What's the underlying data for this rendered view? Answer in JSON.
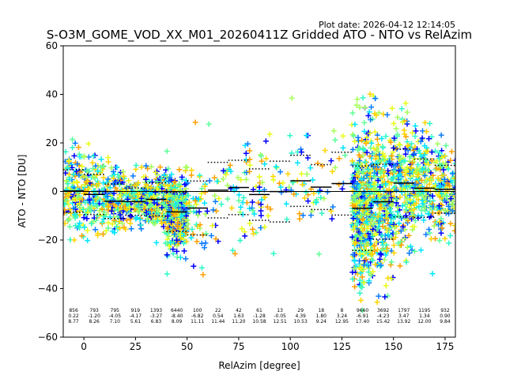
{
  "chart_data": {
    "type": "scatter",
    "title": "S-O3M_GOME_VOD_XX_M01_20260411Z Gridded ATO - NTO vs RelAzim",
    "plot_date": "Plot date: 2026-04-12 12:14:05",
    "xlabel": "RelAzim [degree]",
    "ylabel": "ATO - NTO [DU]",
    "xlim": [
      -10,
      180
    ],
    "ylim": [
      -60,
      60
    ],
    "xticks": [
      0,
      25,
      50,
      75,
      100,
      125,
      150,
      175
    ],
    "yticks": [
      -60,
      -40,
      -20,
      0,
      20,
      40,
      60
    ],
    "grid": false,
    "zero_line": 0,
    "colors": [
      "#0000ff",
      "#0b7bff",
      "#00e5ff",
      "#2ff7c8",
      "#5dff9a",
      "#a6ff5a",
      "#e8ff1a",
      "#ffd400",
      "#ffa000"
    ],
    "bins": [
      {
        "x0": -10,
        "x1": 0,
        "count": "856",
        "mean": "0.22",
        "std": "8.77"
      },
      {
        "x0": 0,
        "x1": 10,
        "count": "793",
        "mean": "-1.20",
        "std": "8.26"
      },
      {
        "x0": 10,
        "x1": 20,
        "count": "795",
        "mean": "-4.05",
        "std": "7.10"
      },
      {
        "x0": 20,
        "x1": 30,
        "count": "919",
        "mean": "-4.17",
        "std": "5.61"
      },
      {
        "x0": 30,
        "x1": 40,
        "count": "1393",
        "mean": "-3.27",
        "std": "6.83"
      },
      {
        "x0": 40,
        "x1": 50,
        "count": "6440",
        "mean": "-8.40",
        "std": "8.09"
      },
      {
        "x0": 50,
        "x1": 60,
        "count": "100",
        "mean": "-6.82",
        "std": "11.11"
      },
      {
        "x0": 60,
        "x1": 70,
        "count": "22",
        "mean": "0.54",
        "std": "11.44"
      },
      {
        "x0": 70,
        "x1": 80,
        "count": "42",
        "mean": "1.63",
        "std": "11.20"
      },
      {
        "x0": 80,
        "x1": 90,
        "count": "61",
        "mean": "-1.28",
        "std": "10.58"
      },
      {
        "x0": 90,
        "x1": 100,
        "count": "13",
        "mean": "-0.05",
        "std": "12.51"
      },
      {
        "x0": 100,
        "x1": 110,
        "count": "29",
        "mean": "4.39",
        "std": "10.53"
      },
      {
        "x0": 110,
        "x1": 120,
        "count": "18",
        "mean": "1.80",
        "std": "9.24"
      },
      {
        "x0": 120,
        "x1": 130,
        "count": "8",
        "mean": "3.24",
        "std": "12.95"
      },
      {
        "x0": 130,
        "x1": 140,
        "count": "9660",
        "mean": "-6.91",
        "std": "17.40"
      },
      {
        "x0": 140,
        "x1": 150,
        "count": "3692",
        "mean": "-4.23",
        "std": "15.42"
      },
      {
        "x0": 150,
        "x1": 160,
        "count": "1797",
        "mean": "3.47",
        "std": "13.92"
      },
      {
        "x0": 160,
        "x1": 170,
        "count": "1195",
        "mean": "1.34",
        "std": "12.00"
      },
      {
        "x0": 170,
        "x1": 180,
        "count": "932",
        "mean": "0.90",
        "std": "9.84"
      }
    ]
  }
}
